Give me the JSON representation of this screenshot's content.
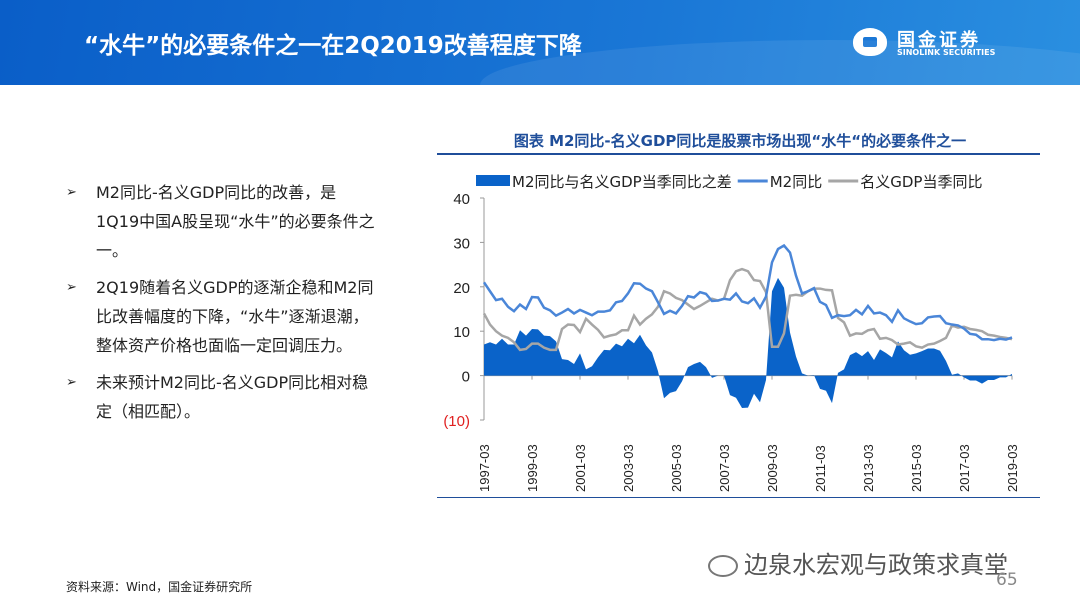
{
  "header": {
    "title": "“水牛”的必要条件之一在2Q2019改善程度下降",
    "logo_cn": "国金证券",
    "logo_en": "SINOLINK SECURITIES"
  },
  "bullets": [
    "M2同比-名义GDP同比的改善，是1Q19中国A股呈现“水牛”的必要条件之一。",
    "2Q19随着名义GDP的逐渐企稳和M2同比改善幅度的下降，“水牛”逐渐退潮，整体资产价格也面临一定回调压力。",
    "未来预计M2同比-名义GDP同比相对稳定（相匹配）。"
  ],
  "source": "资料来源：Wind，国金证券研究所",
  "watermark": "边泉水宏观与政策求真堂",
  "page_number": "65",
  "chart_data": {
    "type": "line",
    "title": "图表  M2同比-名义GDP同比是股票市场出现“水牛“的必要条件之一",
    "x_start": "1997-03",
    "frequency": "quarterly",
    "xticks": [
      "1997-03",
      "1999-03",
      "2001-03",
      "2003-03",
      "2005-03",
      "2007-03",
      "2009-03",
      "2011-03",
      "2013-03",
      "2015-03",
      "2017-03",
      "2019-03"
    ],
    "yticks": [
      "40",
      "30",
      "20",
      "10",
      "0",
      "(10)"
    ],
    "ylim": [
      -10,
      40
    ],
    "legend_position": "top",
    "series": [
      {
        "name": "M2同比与名义GDP当季同比之差",
        "type": "area",
        "color": "#0a63c9",
        "values": [
          7,
          7.5,
          7,
          8.3,
          7,
          7,
          10.2,
          9,
          10.5,
          10.4,
          9,
          8.9,
          7.7,
          3.7,
          3.5,
          2.6,
          5,
          1.4,
          2.1,
          4.1,
          5.8,
          5.7,
          7.2,
          6.6,
          8.3,
          7.3,
          9.2,
          6.8,
          5.2,
          1,
          -5.1,
          -3.9,
          -3.5,
          -1.3,
          1.9,
          2.6,
          3.1,
          1.9,
          -0.5,
          0,
          0,
          -4.4,
          -5,
          -7.3,
          -7.2,
          -4.1,
          -6,
          -1,
          19,
          22,
          19.8,
          9.7,
          4.3,
          0.5,
          0,
          0.1,
          -3,
          -3.4,
          -6.2,
          0.6,
          1.4,
          4.6,
          5.3,
          4.4,
          5.5,
          3.5,
          5.9,
          5.1,
          4.1,
          7.7,
          5.7,
          4.7,
          5,
          5.5,
          6.1,
          6.1,
          5.6,
          3.3,
          0.2,
          0.5,
          -0.4,
          -1.1,
          -1.1,
          -1.8,
          -1,
          -1,
          -0.4,
          -0.4,
          0.4
        ]
      },
      {
        "name": "M2同比",
        "type": "line",
        "color": "#4a86d8",
        "values": [
          21,
          19,
          17,
          17.3,
          15.5,
          14.5,
          16,
          15,
          17.7,
          17.6,
          15.3,
          14.7,
          13.5,
          14.2,
          15,
          14,
          14.8,
          14.2,
          13.6,
          14.4,
          14.4,
          14.7,
          16.5,
          16.8,
          18.5,
          20.8,
          20.7,
          19.6,
          19,
          16.5,
          13.9,
          14.6,
          14,
          15.7,
          17.9,
          17.6,
          18.8,
          18.4,
          16.8,
          16.9,
          17.3,
          17.1,
          18.5,
          16.7,
          16.3,
          17.4,
          15.3,
          17.8,
          25.5,
          28.5,
          29.3,
          27.7,
          22.5,
          18.5,
          19,
          19.7,
          16.6,
          15.9,
          13,
          13.6,
          13.4,
          13.6,
          14.8,
          13.8,
          15.7,
          14,
          14.2,
          13.6,
          12.1,
          14.7,
          12.9,
          12.2,
          11.6,
          11.8,
          13.1,
          13.3,
          13.4,
          11.8,
          11.5,
          11.3,
          10.6,
          9.4,
          9.2,
          8.2,
          8.2,
          8,
          8.3,
          8.1,
          8.6
        ]
      },
      {
        "name": "名义GDP当季同比",
        "type": "line",
        "color": "#a6a6a6",
        "values": [
          14,
          11.5,
          10,
          9,
          8.5,
          7.5,
          5.8,
          6,
          7.2,
          7.2,
          6.3,
          5.8,
          5.8,
          10.5,
          11.5,
          11.4,
          9.8,
          12.8,
          11.5,
          10.3,
          8.6,
          9,
          9.3,
          10.2,
          10.2,
          13.5,
          11.5,
          12.8,
          13.8,
          15.5,
          19,
          18.5,
          17.5,
          17,
          16,
          15,
          15.7,
          16.5,
          17.3,
          16.9,
          17.3,
          21.5,
          23.5,
          24,
          23.5,
          21.5,
          21.3,
          18.8,
          6.5,
          6.5,
          9.5,
          18,
          18.2,
          18,
          19,
          19.6,
          19.6,
          19.3,
          19.2,
          13,
          12,
          9,
          9.5,
          9.4,
          10.2,
          10.5,
          8.3,
          8.5,
          8,
          7,
          7.2,
          7.5,
          6.6,
          6.3,
          7,
          7.2,
          7.8,
          8.5,
          11.3,
          10.8,
          11,
          10.5,
          10.3,
          10,
          9.2,
          9,
          8.7,
          8.5,
          8.2
        ]
      }
    ]
  }
}
